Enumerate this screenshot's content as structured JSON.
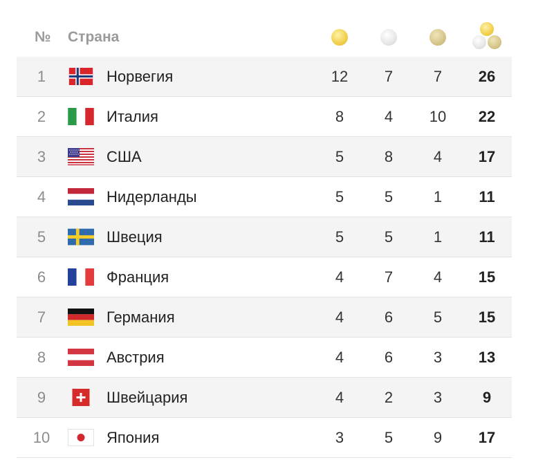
{
  "header": {
    "num_label": "№",
    "country_label": "Страна",
    "icons": [
      "gold-medal-icon",
      "silver-medal-icon",
      "bronze-medal-icon",
      "total-medals-icon"
    ]
  },
  "rows": [
    {
      "rank": "1",
      "country": "Норвегия",
      "flag": "norway-flag-icon",
      "gold": "12",
      "silver": "7",
      "bronze": "7",
      "total": "26"
    },
    {
      "rank": "2",
      "country": "Италия",
      "flag": "italy-flag-icon",
      "gold": "8",
      "silver": "4",
      "bronze": "10",
      "total": "22"
    },
    {
      "rank": "3",
      "country": "США",
      "flag": "usa-flag-icon",
      "gold": "5",
      "silver": "8",
      "bronze": "4",
      "total": "17"
    },
    {
      "rank": "4",
      "country": "Нидерланды",
      "flag": "netherlands-flag-icon",
      "gold": "5",
      "silver": "5",
      "bronze": "1",
      "total": "11"
    },
    {
      "rank": "5",
      "country": "Швеция",
      "flag": "sweden-flag-icon",
      "gold": "5",
      "silver": "5",
      "bronze": "1",
      "total": "11"
    },
    {
      "rank": "6",
      "country": "Франция",
      "flag": "france-flag-icon",
      "gold": "4",
      "silver": "7",
      "bronze": "4",
      "total": "15"
    },
    {
      "rank": "7",
      "country": "Германия",
      "flag": "germany-flag-icon",
      "gold": "4",
      "silver": "6",
      "bronze": "5",
      "total": "15"
    },
    {
      "rank": "8",
      "country": "Австрия",
      "flag": "austria-flag-icon",
      "gold": "4",
      "silver": "6",
      "bronze": "3",
      "total": "13"
    },
    {
      "rank": "9",
      "country": "Швейцария",
      "flag": "switzerland-flag-icon",
      "gold": "4",
      "silver": "2",
      "bronze": "3",
      "total": "9"
    },
    {
      "rank": "10",
      "country": "Япония",
      "flag": "japan-flag-icon",
      "gold": "3",
      "silver": "5",
      "bronze": "9",
      "total": "17"
    }
  ]
}
